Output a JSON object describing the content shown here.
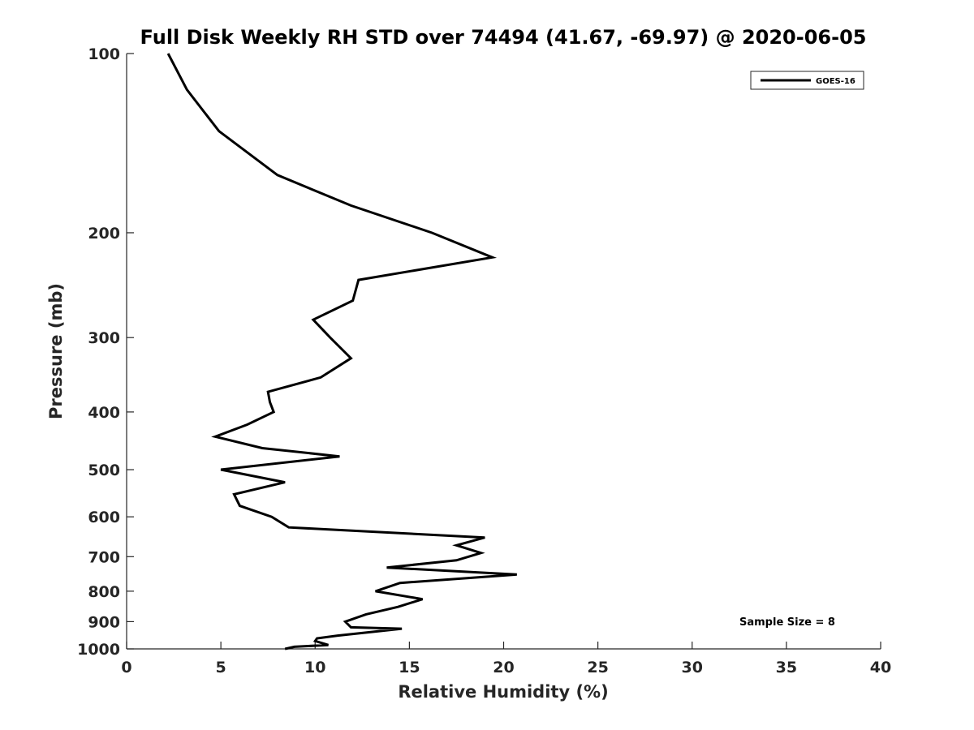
{
  "chart_data": {
    "type": "line",
    "title": "Full Disk Weekly RH STD over 74494 (41.67, -69.97) @ 2020-06-05",
    "xlabel": "Relative Humidity (%)",
    "ylabel": "Pressure (mb)",
    "xlim": [
      0,
      40
    ],
    "ylim": [
      100,
      1000
    ],
    "y_scale": "log",
    "y_direction": "reverse",
    "x_ticks": [
      "0",
      "5",
      "10",
      "15",
      "20",
      "25",
      "30",
      "35",
      "40"
    ],
    "y_ticks": [
      "100",
      "200",
      "300",
      "400",
      "500",
      "600",
      "700",
      "800",
      "900",
      "1000"
    ],
    "grid": false,
    "legend_position": "top-right",
    "series": [
      {
        "name": "GOES-16",
        "color": "#000000",
        "x": [
          2.2,
          3.2,
          4.9,
          8.0,
          11.9,
          16.2,
          19.4,
          12.3,
          12.0,
          9.9,
          10.8,
          11.9,
          10.3,
          7.5,
          7.6,
          7.8,
          6.4,
          4.7,
          7.2,
          11.3,
          5.0,
          8.4,
          5.7,
          6.0,
          7.7,
          8.6,
          19.0,
          17.5,
          18.8,
          17.5,
          13.8,
          20.7,
          14.5,
          13.2,
          15.7,
          14.4,
          12.7,
          11.6,
          11.9,
          14.6,
          11.2,
          10.1,
          10.0,
          10.7,
          8.9,
          8.4
        ],
        "y": [
          100,
          115,
          135,
          160,
          180,
          200,
          220,
          240,
          260,
          280,
          300,
          325,
          350,
          370,
          385,
          400,
          420,
          440,
          460,
          475,
          500,
          525,
          550,
          575,
          600,
          625,
          650,
          670,
          690,
          710,
          730,
          750,
          775,
          800,
          825,
          850,
          875,
          900,
          920,
          925,
          950,
          960,
          970,
          985,
          992,
          1000
        ]
      }
    ],
    "legend": [
      "GOES-16"
    ],
    "annotation": "Sample Size = 8"
  }
}
